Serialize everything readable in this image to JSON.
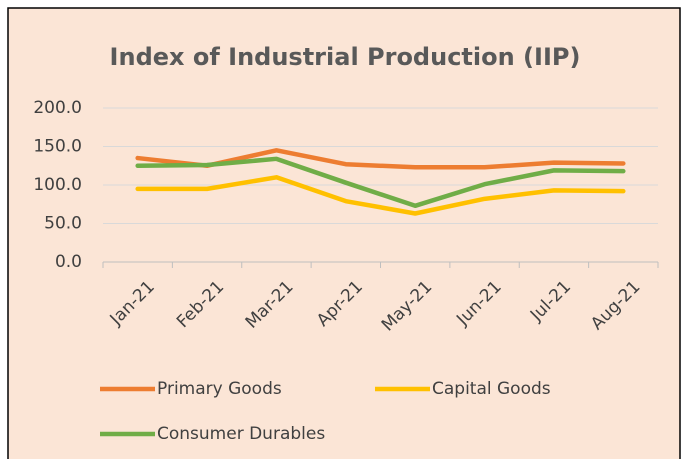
{
  "chart_data": {
    "type": "line",
    "title": "Index of Industrial Production (IIP)",
    "categories": [
      "Jan-21",
      "Feb-21",
      "Mar-21",
      "Apr-21",
      "May-21",
      "Jun-21",
      "Jul-21",
      "Aug-21"
    ],
    "series": [
      {
        "name": "Primary Goods",
        "color": "#ed7d31",
        "values": [
          135,
          125,
          145,
          127,
          123,
          123,
          129,
          128
        ]
      },
      {
        "name": "Capital Goods",
        "color": "#ffc000",
        "values": [
          95,
          95,
          110,
          79,
          63,
          82,
          93,
          92
        ]
      },
      {
        "name": "Consumer Durables",
        "color": "#70ad47",
        "values": [
          125,
          126,
          134,
          103,
          73,
          101,
          119,
          118
        ]
      }
    ],
    "ylim": [
      0,
      200
    ],
    "yticks": [
      {
        "value": 0,
        "label": "0.0"
      },
      {
        "value": 50,
        "label": "50.0"
      },
      {
        "value": 100,
        "label": "100.0"
      },
      {
        "value": 150,
        "label": "150.0"
      },
      {
        "value": 200,
        "label": "200.0"
      }
    ],
    "grid": true
  }
}
